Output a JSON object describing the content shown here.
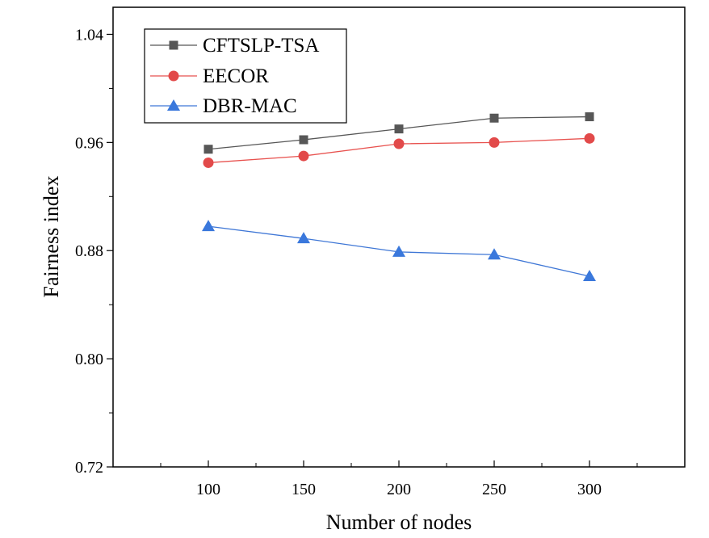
{
  "chart_data": {
    "type": "line",
    "title": "",
    "xlabel": "Number of nodes",
    "ylabel": "Fairness index",
    "x": [
      100,
      150,
      200,
      250,
      300
    ],
    "xlim": [
      50,
      350
    ],
    "ylim": [
      0.72,
      1.06
    ],
    "xticks": [
      100,
      150,
      200,
      250,
      300
    ],
    "xtick_labels": [
      "100",
      "150",
      "200",
      "250",
      "300"
    ],
    "yticks": [
      0.72,
      0.8,
      0.88,
      0.96,
      1.04
    ],
    "ytick_labels": [
      "0.72",
      "0.80",
      "0.88",
      "0.96",
      "1.04"
    ],
    "grid": false,
    "legend_position": "top-left",
    "series": [
      {
        "name": "CFTSLP-TSA",
        "marker": "square",
        "color": "#575757",
        "marker_color": "#575757",
        "values": [
          0.955,
          0.962,
          0.97,
          0.978,
          0.979
        ]
      },
      {
        "name": "EECOR",
        "marker": "circle",
        "color": "#e8524f",
        "marker_color": "#e24a4a",
        "values": [
          0.945,
          0.95,
          0.959,
          0.96,
          0.963
        ]
      },
      {
        "name": "DBR-MAC",
        "marker": "triangle",
        "color": "#3f77d6",
        "marker_color": "#3a78dc",
        "values": [
          0.898,
          0.889,
          0.879,
          0.877,
          0.861
        ]
      }
    ]
  }
}
